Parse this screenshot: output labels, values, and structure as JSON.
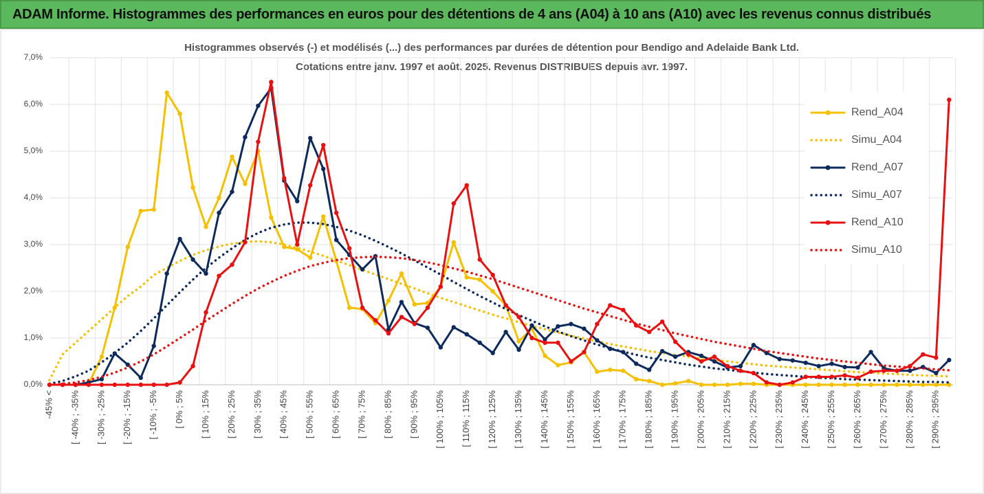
{
  "header": {
    "title": "ADAM Informe. Histogrammes des performances en euros pour des détentions de 4 ans (A04) à 10 ans (A10) avec les revenus connus distribués"
  },
  "chart_data": {
    "type": "line",
    "title": [
      "Histogrammes observés (-) et modélisés (...) des performances par durées de détention pour Bendigo and Adelaide Bank Ltd.",
      "Cotations entre janv. 1997 et août. 2025. Revenus DISTRIBUES depuis avr.  1997."
    ],
    "categories": [
      "-45% <",
      null,
      "[ -40% ; -35%",
      null,
      "[ -30% ; -25%",
      null,
      "[ -20% ; -15%",
      null,
      "[ -10% ; -5%",
      null,
      "[ 0% ; 5%",
      null,
      "[ 10% ; 15%",
      null,
      "[ 20% ; 25%",
      null,
      "[ 30% ; 35%",
      null,
      "[ 40% ; 45%",
      null,
      "[ 50% ; 55%",
      null,
      "[ 60% ; 65%",
      null,
      "[ 70% ; 75%",
      null,
      "[ 80% ; 85%",
      null,
      "[ 90% ; 95%",
      null,
      "[ 100% ; 105%",
      null,
      "[ 110% ; 115%",
      null,
      "[ 120% ; 125%",
      null,
      "[ 130% ; 135%",
      null,
      "[ 140% ; 145%",
      null,
      "[ 150% ; 155%",
      null,
      "[ 160% ; 165%",
      null,
      "[ 170% ; 175%",
      null,
      "[ 180% ; 185%",
      null,
      "[ 190% ; 195%",
      null,
      "[ 200% ; 205%",
      null,
      "[ 210% ; 215%",
      null,
      "[ 220% ; 225%",
      null,
      "[ 230% ; 235%",
      null,
      "[ 240% ; 245%",
      null,
      "[ 250% ; 255%",
      null,
      "[ 260% ; 265%",
      null,
      "[ 270% ; 275%",
      null,
      "[ 280% ; 285%",
      null,
      "[ 290% ; 295%",
      null
    ],
    "series": [
      {
        "name": "Rend_A04",
        "color": "#f5c000",
        "style": "solid",
        "values": [
          0,
          0,
          0,
          0.02,
          0.6,
          1.65,
          2.95,
          3.72,
          3.75,
          6.25,
          5.8,
          4.22,
          3.38,
          4.0,
          4.88,
          4.3,
          5.0,
          3.58,
          2.95,
          2.9,
          2.72,
          3.6,
          2.65,
          1.65,
          1.62,
          1.32,
          1.8,
          2.38,
          1.72,
          1.75,
          2.1,
          3.05,
          2.3,
          2.25,
          2.0,
          1.7,
          0.93,
          1.2,
          0.62,
          0.42,
          0.48,
          0.7,
          0.28,
          0.32,
          0.3,
          0.12,
          0.08,
          0,
          0.03,
          0.08,
          0,
          0,
          0,
          0.02,
          0.02,
          0,
          0,
          0,
          0,
          0,
          0,
          0,
          0,
          0,
          0,
          0,
          0,
          0,
          0,
          0
        ]
      },
      {
        "name": "Simu_A04",
        "color": "#f5c000",
        "style": "dotted",
        "values": [
          0.1,
          0.65,
          0.9,
          1.15,
          1.4,
          1.65,
          1.9,
          2.1,
          2.35,
          2.5,
          2.65,
          2.78,
          2.88,
          2.96,
          3.02,
          3.06,
          3.07,
          3.05,
          3.0,
          2.93,
          2.85,
          2.76,
          2.66,
          2.56,
          2.46,
          2.36,
          2.26,
          2.16,
          2.06,
          1.96,
          1.86,
          1.77,
          1.68,
          1.59,
          1.5,
          1.42,
          1.34,
          1.26,
          1.19,
          1.12,
          1.05,
          0.99,
          0.93,
          0.87,
          0.82,
          0.77,
          0.72,
          0.68,
          0.64,
          0.6,
          0.56,
          0.53,
          0.5,
          0.47,
          0.44,
          0.41,
          0.39,
          0.37,
          0.35,
          0.33,
          0.31,
          0.29,
          0.27,
          0.26,
          0.24,
          0.23,
          0.21,
          0.2,
          0.19,
          0.18
        ]
      },
      {
        "name": "Rend_A07",
        "color": "#0d2a5c",
        "style": "solid",
        "values": [
          0,
          0,
          0,
          0.05,
          0.12,
          0.67,
          0.43,
          0.15,
          0.83,
          2.38,
          3.12,
          2.68,
          2.38,
          3.68,
          4.13,
          5.3,
          5.97,
          6.35,
          4.37,
          3.93,
          5.28,
          4.62,
          3.1,
          2.78,
          2.47,
          2.75,
          1.18,
          1.77,
          1.32,
          1.22,
          0.8,
          1.23,
          1.08,
          0.9,
          0.68,
          1.13,
          0.75,
          1.27,
          0.97,
          1.25,
          1.3,
          1.2,
          0.95,
          0.77,
          0.7,
          0.45,
          0.32,
          0.72,
          0.6,
          0.7,
          0.62,
          0.5,
          0.37,
          0.4,
          0.85,
          0.68,
          0.55,
          0.52,
          0.47,
          0.4,
          0.45,
          0.38,
          0.37,
          0.7,
          0.35,
          0.3,
          0.3,
          0.38,
          0.25,
          0.53
        ]
      },
      {
        "name": "Simu_A07",
        "color": "#0d2a5c",
        "style": "dotted",
        "values": [
          0.02,
          0.08,
          0.18,
          0.3,
          0.48,
          0.68,
          0.9,
          1.15,
          1.42,
          1.7,
          1.98,
          2.25,
          2.5,
          2.72,
          2.92,
          3.1,
          3.25,
          3.36,
          3.43,
          3.47,
          3.47,
          3.44,
          3.38,
          3.3,
          3.2,
          3.08,
          2.95,
          2.81,
          2.66,
          2.51,
          2.36,
          2.2,
          2.05,
          1.9,
          1.76,
          1.62,
          1.49,
          1.37,
          1.25,
          1.14,
          1.04,
          0.95,
          0.86,
          0.78,
          0.71,
          0.64,
          0.58,
          0.53,
          0.48,
          0.43,
          0.39,
          0.35,
          0.32,
          0.29,
          0.26,
          0.23,
          0.21,
          0.19,
          0.17,
          0.15,
          0.14,
          0.12,
          0.11,
          0.1,
          0.09,
          0.08,
          0.07,
          0.06,
          0.06,
          0.05
        ]
      },
      {
        "name": "Rend_A10",
        "color": "#e81010",
        "style": "solid",
        "values": [
          0,
          0,
          0,
          0,
          0,
          0,
          0,
          0,
          0,
          0,
          0.05,
          0.4,
          1.55,
          2.33,
          2.57,
          3.05,
          5.2,
          6.48,
          4.42,
          3.0,
          4.27,
          5.13,
          3.68,
          2.92,
          1.65,
          1.38,
          1.1,
          1.45,
          1.3,
          1.65,
          2.1,
          3.88,
          4.27,
          2.68,
          2.35,
          1.7,
          1.45,
          1.0,
          0.9,
          0.9,
          0.5,
          0.7,
          1.3,
          1.7,
          1.6,
          1.27,
          1.13,
          1.35,
          0.92,
          0.65,
          0.5,
          0.6,
          0.4,
          0.3,
          0.25,
          0.05,
          0,
          0.05,
          0.17,
          0.17,
          0.17,
          0.2,
          0.15,
          0.28,
          0.3,
          0.3,
          0.4,
          0.65,
          0.58,
          6.1
        ]
      },
      {
        "name": "Simu_A10",
        "color": "#e81010",
        "style": "dotted",
        "values": [
          0,
          0.02,
          0.05,
          0.1,
          0.17,
          0.26,
          0.37,
          0.5,
          0.65,
          0.82,
          1.0,
          1.18,
          1.37,
          1.55,
          1.73,
          1.9,
          2.06,
          2.2,
          2.33,
          2.44,
          2.54,
          2.61,
          2.67,
          2.71,
          2.73,
          2.74,
          2.73,
          2.71,
          2.67,
          2.62,
          2.56,
          2.49,
          2.42,
          2.34,
          2.26,
          2.17,
          2.08,
          1.99,
          1.9,
          1.81,
          1.72,
          1.63,
          1.55,
          1.47,
          1.39,
          1.31,
          1.24,
          1.17,
          1.1,
          1.04,
          0.98,
          0.92,
          0.87,
          0.82,
          0.77,
          0.72,
          0.68,
          0.64,
          0.6,
          0.56,
          0.53,
          0.5,
          0.47,
          0.44,
          0.41,
          0.39,
          0.37,
          0.35,
          0.33,
          0.31
        ]
      }
    ],
    "ylim": [
      0,
      7
    ],
    "yticks": [
      {
        "value": 0,
        "label": "0,0%"
      },
      {
        "value": 1,
        "label": "1,0%"
      },
      {
        "value": 2,
        "label": "2,0%"
      },
      {
        "value": 3,
        "label": "3,0%"
      },
      {
        "value": 4,
        "label": "4,0%"
      },
      {
        "value": 5,
        "label": "5,0%"
      },
      {
        "value": 6,
        "label": "6,0%"
      },
      {
        "value": 7,
        "label": "7,0%"
      }
    ],
    "grid": true,
    "legend": "right"
  }
}
